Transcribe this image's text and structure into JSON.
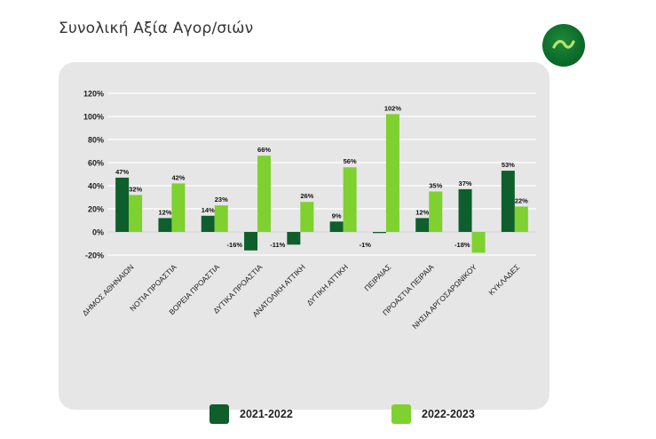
{
  "page": {
    "title": "Συνολική Αξία Αγορ/σιών"
  },
  "logo": {
    "icon": "wave-logo-icon"
  },
  "colors": {
    "series1": "#0e5f2b",
    "series2": "#7ed12f",
    "grid": "#ffffff",
    "card": "#e6e6e6"
  },
  "chart_data": {
    "type": "bar",
    "title": "Συνολική Αξία Αγορ/σιών",
    "categories": [
      "ΔΗΜΟΣ ΑΘΗΝΑΙΩΝ",
      "ΝΟΤΙΑ ΠΡΟΑΣΤΙΑ",
      "ΒΟΡΕΙΑ ΠΡΟΑΣΤΙΑ",
      "ΔΥΤΙΚΑ ΠΡΟΑΣΤΙΑ",
      "ΑΝΑΤΟΛΙΚΗ ΑΤΤΙΚΗ",
      "ΔΥΤΙΚΗ ΑΤΤΙΚΗ",
      "ΠΕΙΡΑΙΑΣ",
      "ΠΡΟΑΣΤΙΑ ΠΕΙΡΑΙΑ",
      "ΝΗΣΙΑ ΑΡΓΟΣΑΡΩΝΙΚΟΥ",
      "ΚΥΚΛΑΔΕΣ"
    ],
    "series": [
      {
        "name": "2021-2022",
        "values": [
          47,
          12,
          14,
          -16,
          -11,
          9,
          -1,
          12,
          37,
          53
        ]
      },
      {
        "name": "2022-2023",
        "values": [
          32,
          42,
          23,
          66,
          26,
          56,
          102,
          35,
          -18,
          22
        ]
      }
    ],
    "ylim": [
      -20,
      120
    ],
    "yticks": [
      -20,
      0,
      20,
      40,
      60,
      80,
      100,
      120
    ],
    "y_format": "percent",
    "grid": true,
    "legend_position": "bottom"
  }
}
